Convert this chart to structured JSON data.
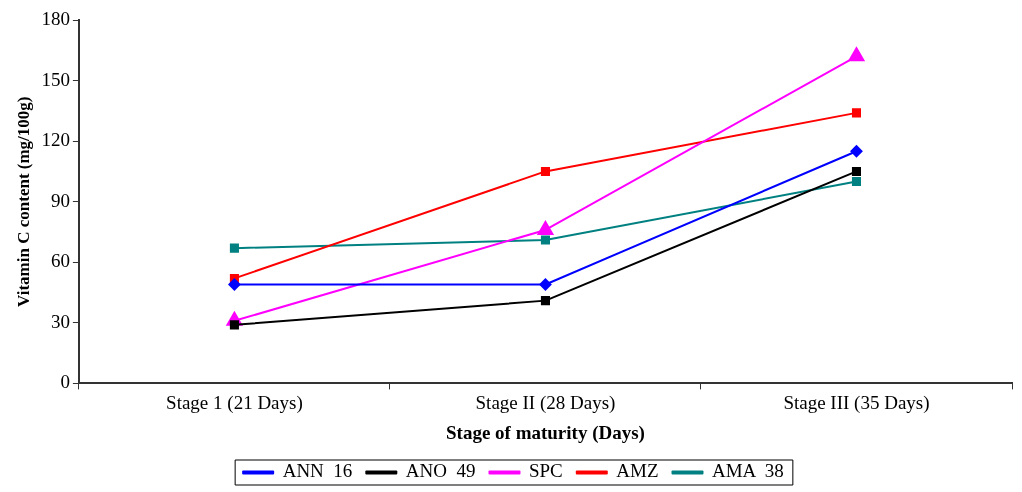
{
  "chart_data": {
    "type": "line",
    "xlabel": "Stage of maturity (Days)",
    "ylabel": "Vitamin C content (mg/100g)",
    "categories": [
      "Stage 1 (21 Days)",
      "Stage II (28 Days)",
      "Stage III (35 Days)"
    ],
    "series": [
      {
        "name": "ANN  16",
        "color": "#0000ff",
        "marker": "diamond",
        "values": [
          49,
          49,
          115
        ]
      },
      {
        "name": "ANO  49",
        "color": "#000000",
        "marker": "square",
        "values": [
          29,
          41,
          105
        ]
      },
      {
        "name": "SPC",
        "color": "#ff00ff",
        "marker": "triangle",
        "values": [
          31,
          76,
          162
        ]
      },
      {
        "name": "AMZ",
        "color": "#ff0000",
        "marker": "square",
        "values": [
          52,
          105,
          134
        ]
      },
      {
        "name": "AMA  38",
        "color": "#008080",
        "marker": "square",
        "values": [
          67,
          71,
          100
        ]
      }
    ],
    "ylim": [
      0,
      180
    ],
    "yticks": [
      0,
      30,
      60,
      90,
      120,
      150,
      180
    ],
    "grid": false,
    "legend": "bottom"
  }
}
